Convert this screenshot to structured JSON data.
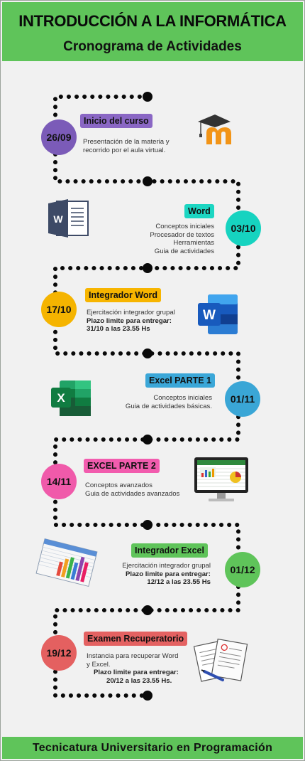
{
  "header": {
    "title": "INTRODUCCIÓN A LA INFORMÁTICA",
    "subtitle": "Cronograma de Actividades"
  },
  "footer": {
    "text": "Tecnicatura Universitario en Programación"
  },
  "colors": {
    "header_green": "#5fc45a",
    "purple": "#7b5bb8",
    "teal": "#16d3c0",
    "orange": "#f5b400",
    "blue": "#3aa6d6",
    "pink": "#f05aaa",
    "green": "#5fc45a",
    "red": "#e46060"
  },
  "items": [
    {
      "date": "26/09",
      "title": "Inicio del curso",
      "lines": [
        "Presentación de la materia y",
        "recorrido por el aula virtual."
      ],
      "icon": "moodle-logo-icon"
    },
    {
      "date": "03/10",
      "title": "Word",
      "lines": [
        "Conceptos iniciales",
        "Procesador de textos",
        "Herramientas",
        "Guia de actividades"
      ],
      "icon": "word-document-icon"
    },
    {
      "date": "17/10",
      "title": "Integrador Word",
      "lines": [
        "Ejercitación integrador grupal",
        "Plazo limite para entregar:",
        "31/10 a las 23.55 Hs"
      ],
      "icon": "word-app-icon"
    },
    {
      "date": "01/11",
      "title": "Excel PARTE 1",
      "lines": [
        "Conceptos iniciales",
        "Guia de actividades básicas."
      ],
      "icon": "excel-app-icon"
    },
    {
      "date": "14/11",
      "title": "EXCEL PARTE 2",
      "lines": [
        "Conceptos avanzados",
        "Guia de actividades avanzados"
      ],
      "icon": "monitor-spreadsheet-icon"
    },
    {
      "date": "01/12",
      "title": "Integrador Excel",
      "lines": [
        "Ejercitación integrador grupal",
        "Plazo limite para entregar:",
        "12/12 a las 23.55 Hs"
      ],
      "icon": "spreadsheet-chart-icon"
    },
    {
      "date": "19/12",
      "title": "Examen Recuperatorio",
      "lines": [
        "Instancia para recuperar Word",
        "y Excel.",
        "Plazo limite para entregar:",
        "20/12 a las 23.55 Hs."
      ],
      "icon": "exam-papers-icon"
    }
  ]
}
